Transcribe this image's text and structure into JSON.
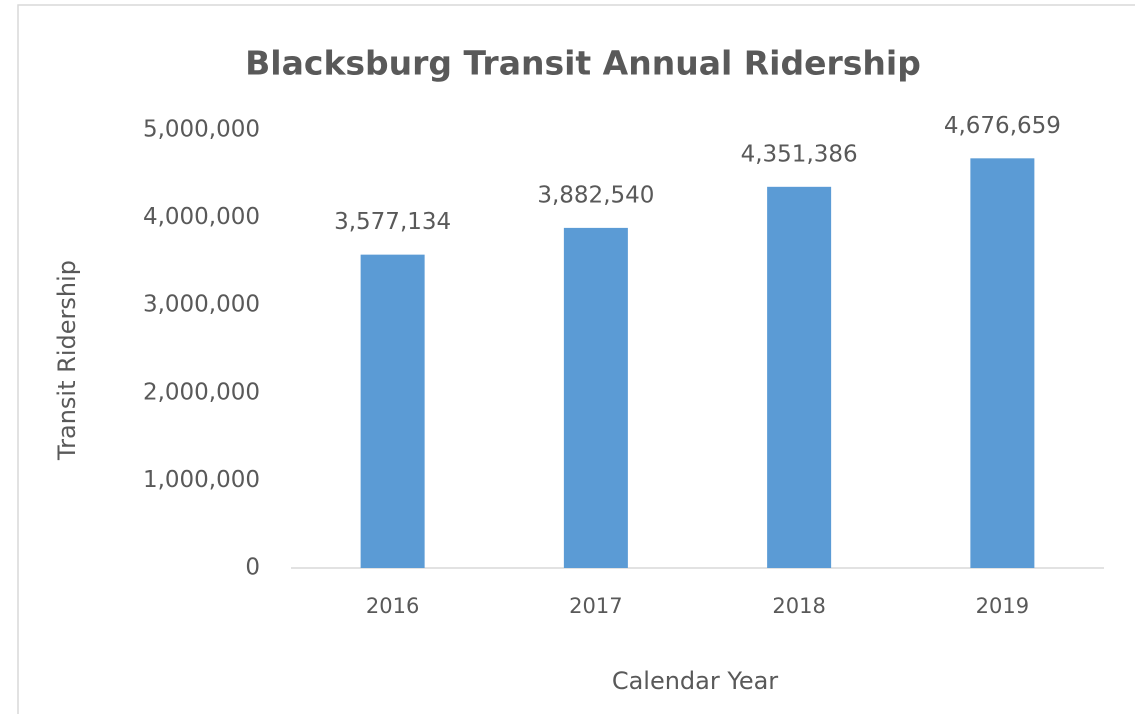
{
  "chart_data": {
    "type": "bar",
    "title": "Blacksburg Transit Annual Ridership",
    "x_label": "Calendar Year",
    "y_label": "Transit Ridership",
    "categories": [
      "2016",
      "2017",
      "2018",
      "2019"
    ],
    "values": [
      3577134,
      3882540,
      4351386,
      4676659
    ],
    "value_labels": [
      "3,577,134",
      "3,882,540",
      "4,351,386",
      "4,676,659"
    ],
    "color": "#5b9bd5",
    "ylim": [
      0,
      5000000
    ],
    "yticks": [
      0,
      {
        "value": 1000000,
        "label": "1,000,000"
      },
      {
        "value": 2000000,
        "label": "2,000,000"
      },
      {
        "value": 3000000,
        "label": "3,000,000"
      },
      {
        "value": 4000000,
        "label": "4,000,000"
      },
      {
        "value": 5000000,
        "label": "5,000,000"
      }
    ],
    "grid": false
  }
}
